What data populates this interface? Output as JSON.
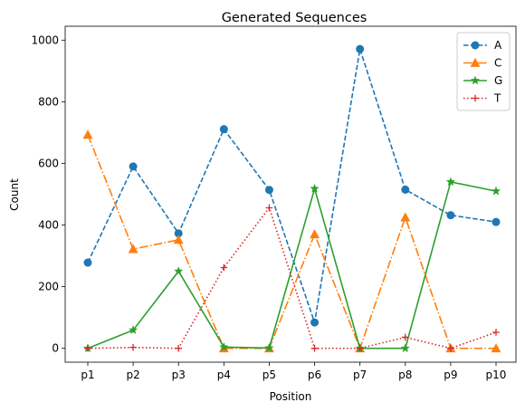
{
  "chart_data": {
    "type": "line",
    "title": "Generated Sequences",
    "xlabel": "Position",
    "ylabel": "Count",
    "categories": [
      "p1",
      "p2",
      "p3",
      "p4",
      "p5",
      "p6",
      "p7",
      "p8",
      "p9",
      "p10"
    ],
    "ylim": [
      -45,
      1045
    ],
    "yticks": [
      0,
      200,
      400,
      600,
      800,
      1000
    ],
    "grid": false,
    "legend_position": "top-right",
    "series": [
      {
        "name": "A",
        "color": "#1f77b4",
        "dash": "dashed",
        "marker": "circle",
        "values": [
          278,
          590,
          373,
          711,
          514,
          84,
          971,
          515,
          432,
          410
        ]
      },
      {
        "name": "C",
        "color": "#ff7f0e",
        "dash": "dashdot",
        "marker": "triangle",
        "values": [
          693,
          322,
          352,
          0,
          0,
          370,
          0,
          425,
          0,
          0
        ]
      },
      {
        "name": "G",
        "color": "#2ca02c",
        "dash": "solid",
        "marker": "star",
        "values": [
          0,
          59,
          250,
          4,
          1,
          518,
          0,
          0,
          540,
          510
        ]
      },
      {
        "name": "T",
        "color": "#d62728",
        "dash": "dotted",
        "marker": "plus",
        "values": [
          0,
          3,
          0,
          262,
          456,
          0,
          0,
          36,
          0,
          52
        ]
      }
    ]
  }
}
